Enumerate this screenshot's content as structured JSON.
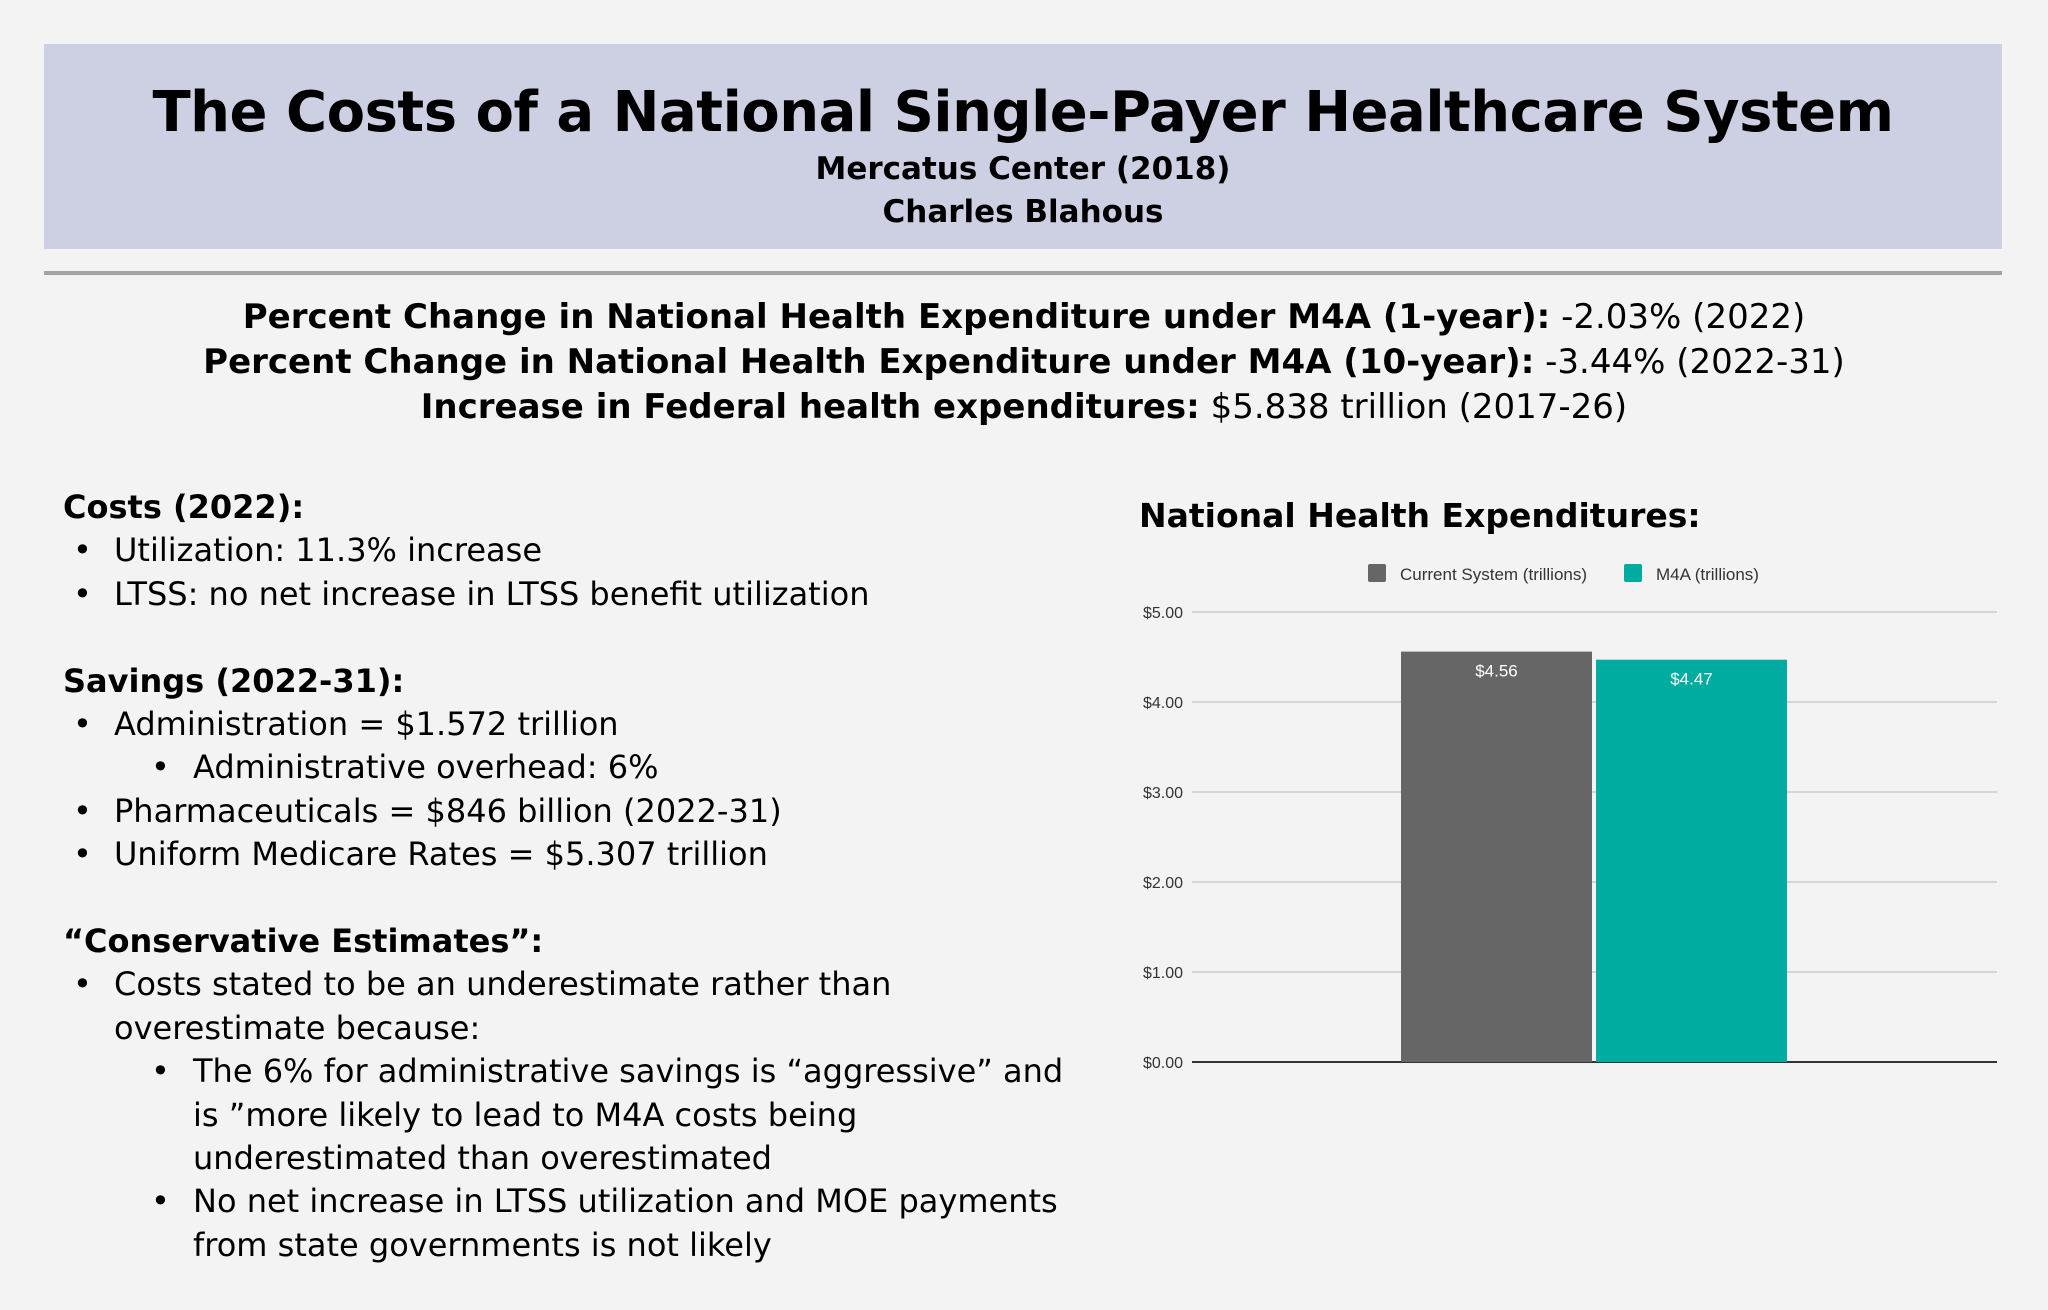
{
  "header": {
    "title": "The Costs of a National Single-Payer Healthcare System",
    "source": "Mercatus Center (2018)",
    "author": "Charles Blahous"
  },
  "summary": [
    {
      "label": "Percent Change in National Health Expenditure under M4A (1-year)",
      "sep": ":",
      "value": " -2.03% (2022)"
    },
    {
      "label": "Percent Change in National Health Expenditure under M4A (10-year)",
      "sep": ":",
      "value": " -3.44% (2022-31)"
    },
    {
      "label": "Increase in Federal health expenditures:",
      "sep": "",
      "value": " $5.838 trillion (2017-26)"
    }
  ],
  "costs": {
    "heading": "Costs (2022):",
    "items": [
      "Utilization: 11.3% increase",
      "LTSS: no net increase in LTSS benefit utilization"
    ]
  },
  "savings": {
    "heading": "Savings (2022-31):",
    "items": [
      "Administration = $1.572 trillion",
      "Administrative overhead: 6%",
      "Pharmaceuticals = $846 billion (2022-31)",
      "Uniform Medicare Rates = $5.307 trillion"
    ]
  },
  "conservative": {
    "heading": "“Conservative Estimates”:",
    "items": [
      "Costs stated to be an underestimate rather than overestimate because:",
      " The 6% for administrative savings is “aggressive” and is ”more likely to lead to M4A costs being underestimated than overestimated",
      "No net increase in LTSS utilization and MOE payments from state governments is not likely"
    ]
  },
  "chart_data": {
    "type": "bar",
    "title": "National Health Expenditures:",
    "categories": [
      ""
    ],
    "series": [
      {
        "name": "Current System (trillions)",
        "values": [
          4.56
        ],
        "color": "#666666",
        "label": "$4.56"
      },
      {
        "name": "M4A (trillions)",
        "values": [
          4.47
        ],
        "color": "#00ab9f",
        "label": "$4.47"
      }
    ],
    "ylim": [
      0,
      5
    ],
    "yticks": [
      "$0.00",
      "$1.00",
      "$2.00",
      "$3.00",
      "$4.00",
      "$5.00"
    ],
    "grid": true,
    "legend": "top"
  }
}
